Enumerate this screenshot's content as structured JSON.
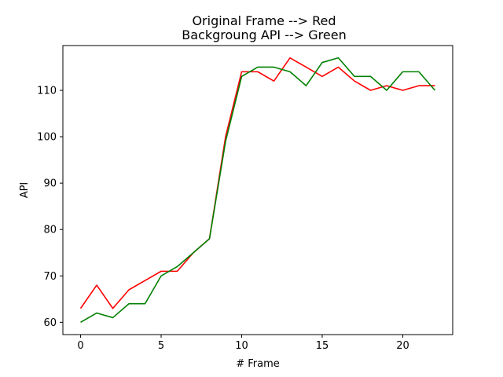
{
  "chart_data": {
    "type": "line",
    "title": [
      "Original Frame --> Red",
      "Backgroung API  -->  Green"
    ],
    "xlabel": "# Frame",
    "ylabel": "API",
    "xlim": [
      -1.1,
      23.1
    ],
    "ylim": [
      57.35,
      119.65
    ],
    "xticks": [
      0,
      5,
      10,
      15,
      20
    ],
    "yticks": [
      60,
      70,
      80,
      90,
      100,
      110
    ],
    "grid": false,
    "legend": "none",
    "x": [
      0,
      1,
      2,
      3,
      4,
      5,
      6,
      7,
      8,
      9,
      10,
      11,
      12,
      13,
      14,
      15,
      16,
      17,
      18,
      19,
      20,
      21,
      22
    ],
    "series": [
      {
        "color": "#ff0000",
        "values": [
          63,
          68,
          63,
          67,
          69,
          71,
          71,
          75,
          78,
          100,
          114,
          114,
          112,
          117,
          115,
          113,
          115,
          112,
          110,
          111,
          110,
          111,
          111
        ]
      },
      {
        "color": "#008000",
        "values": [
          60,
          62,
          61,
          64,
          64,
          70,
          72,
          75,
          78,
          99,
          113,
          115,
          115,
          114,
          111,
          116,
          117,
          113,
          113,
          110,
          114,
          114,
          110
        ]
      }
    ]
  }
}
